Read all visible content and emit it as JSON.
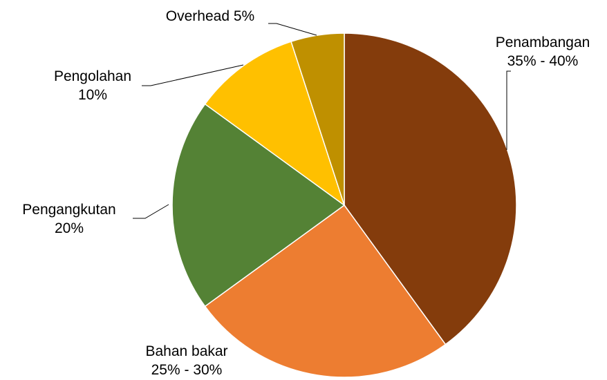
{
  "chart_data": {
    "type": "pie",
    "start_angle_deg": 0,
    "direction": "clockwise",
    "slices": [
      {
        "name": "Penambangan",
        "display": [
          "Penambangan",
          "35% - 40%"
        ],
        "value": 40,
        "color": "#843C0C"
      },
      {
        "name": "Bahan bakar",
        "display": [
          "Bahan bakar",
          "25% - 30%"
        ],
        "value": 25,
        "color": "#ED7D31"
      },
      {
        "name": "Pengangkutan",
        "display": [
          "Pengangkutan",
          "20%"
        ],
        "value": 20,
        "color": "#548235"
      },
      {
        "name": "Pengolahan",
        "display": [
          "Pengolahan",
          "10%"
        ],
        "value": 10,
        "color": "#FFC000"
      },
      {
        "name": "Overhead",
        "display": [
          "Overhead 5%"
        ],
        "value": 5,
        "color": "#BF9000"
      }
    ],
    "legend": "none",
    "labels": "outside with leader lines"
  }
}
